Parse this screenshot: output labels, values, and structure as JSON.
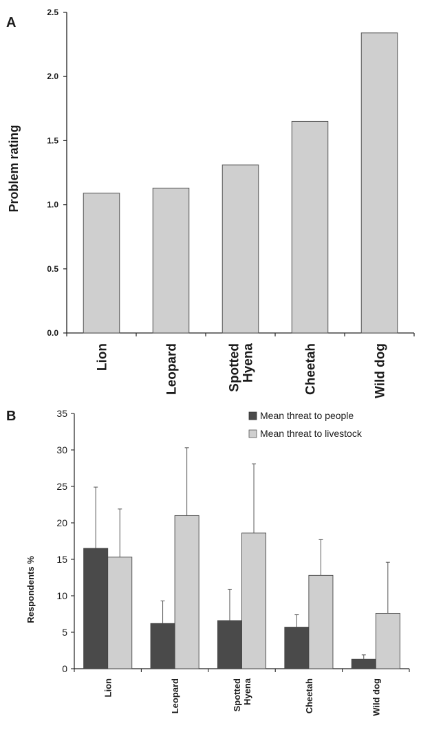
{
  "chart_data": [
    {
      "panel": "A",
      "type": "bar",
      "categories": [
        "Lion",
        "Leopard",
        "Spotted\nHyena",
        "Cheetah",
        "Wild dog"
      ],
      "values": [
        1.09,
        1.13,
        1.31,
        1.65,
        2.34
      ],
      "ylabel": "Problem rating",
      "yticks": [
        "0.0",
        "0.5",
        "1.0",
        "1.5",
        "2.0",
        "2.5"
      ],
      "ylim": [
        0,
        2.5
      ],
      "colors": {
        "bar": "#cfcfcf",
        "edge": "#555555"
      }
    },
    {
      "panel": "B",
      "type": "bar",
      "categories": [
        "Lion",
        "Leopard",
        "Spotted\nHyena",
        "Cheetah",
        "Wild dog"
      ],
      "series": [
        {
          "name": "Mean threat to people",
          "values": [
            16.5,
            6.2,
            6.6,
            5.7,
            1.3
          ],
          "errors": [
            8.4,
            3.1,
            4.3,
            1.7,
            0.6
          ],
          "color": "#4a4a4a"
        },
        {
          "name": "Mean threat to livestock",
          "values": [
            15.3,
            21.0,
            18.6,
            12.8,
            7.6
          ],
          "errors": [
            6.6,
            9.3,
            9.5,
            4.9,
            7.0
          ],
          "color": "#cfcfcf"
        }
      ],
      "ylabel": "Respondents %",
      "yticks": [
        "0",
        "5",
        "10",
        "15",
        "20",
        "25",
        "30",
        "35"
      ],
      "ylim": [
        0,
        35
      ],
      "legend": "top-right"
    }
  ]
}
